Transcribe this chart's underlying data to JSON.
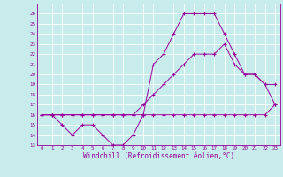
{
  "xlabel": "Windchill (Refroidissement éolien,°C)",
  "bg_color": "#c8ecec",
  "line_color": "#990099",
  "grid_color": "#ffffff",
  "ylim": [
    13,
    27
  ],
  "xlim": [
    -0.5,
    23.5
  ],
  "yticks": [
    13,
    14,
    15,
    16,
    17,
    18,
    19,
    20,
    21,
    22,
    23,
    24,
    25,
    26
  ],
  "xticks": [
    0,
    1,
    2,
    3,
    4,
    5,
    6,
    7,
    8,
    9,
    10,
    11,
    12,
    13,
    14,
    15,
    16,
    17,
    18,
    19,
    20,
    21,
    22,
    23
  ],
  "series": [
    [
      16,
      16,
      16,
      16,
      16,
      16,
      16,
      16,
      16,
      16,
      16,
      16,
      16,
      16,
      16,
      16,
      16,
      16,
      16,
      16,
      16,
      16,
      16,
      17
    ],
    [
      16,
      16,
      16,
      16,
      16,
      16,
      16,
      16,
      16,
      16,
      17,
      18,
      19,
      20,
      21,
      22,
      22,
      22,
      23,
      21,
      20,
      20,
      19,
      17
    ],
    [
      16,
      16,
      15,
      14,
      15,
      15,
      14,
      13,
      13,
      14,
      16,
      21,
      22,
      24,
      26,
      26,
      26,
      26,
      24,
      22,
      20,
      20,
      19,
      19
    ]
  ]
}
